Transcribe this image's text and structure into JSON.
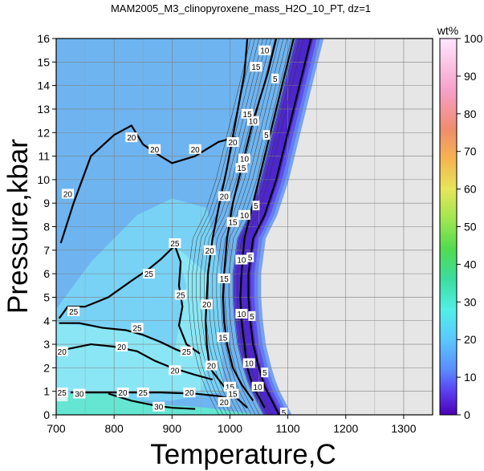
{
  "chart_data": {
    "type": "heatmap",
    "title": "MAM2005_M3_clinopyroxene_mass_H2O_10_PT, dz=1",
    "xlabel": "Temperature,C",
    "ylabel": "Pressure,kbar",
    "xlim": [
      700,
      1350
    ],
    "ylim": [
      0,
      16
    ],
    "xticks": [
      "700",
      "800",
      "900",
      "1000",
      "1100",
      "1200",
      "1300"
    ],
    "yticks": [
      "0",
      "1",
      "2",
      "3",
      "4",
      "5",
      "6",
      "7",
      "8",
      "9",
      "10",
      "11",
      "12",
      "13",
      "14",
      "15",
      "16"
    ],
    "grid": true,
    "colorbar": {
      "label": "wt%",
      "ticks": [
        "0",
        "10",
        "20",
        "30",
        "40",
        "50",
        "60",
        "70",
        "80",
        "90",
        "100"
      ],
      "range": [
        0,
        100
      ]
    },
    "no_data_color": "#e6e6e6",
    "contours": [
      {
        "level": 5,
        "points": [
          [
            1085,
            0
          ],
          [
            1060,
            1.2
          ],
          [
            1050,
            2
          ],
          [
            1040,
            3
          ],
          [
            1035,
            4
          ],
          [
            1032,
            5
          ],
          [
            1032,
            6
          ],
          [
            1040,
            7.5
          ],
          [
            1060,
            8.5
          ],
          [
            1080,
            10
          ],
          [
            1100,
            12
          ],
          [
            1120,
            14
          ],
          [
            1140,
            16
          ]
        ]
      },
      {
        "level": 10,
        "points": [
          [
            1060,
            0.3
          ],
          [
            1040,
            1.2
          ],
          [
            1030,
            2
          ],
          [
            1025,
            3
          ],
          [
            1020,
            4
          ],
          [
            1018,
            5
          ],
          [
            1020,
            6
          ],
          [
            1025,
            7.5
          ],
          [
            1040,
            9
          ],
          [
            1055,
            10.5
          ],
          [
            1075,
            12.5
          ],
          [
            1100,
            15
          ],
          [
            1110,
            16
          ]
        ]
      },
      {
        "level": 15,
        "points": [
          [
            1040,
            0.6
          ],
          [
            1020,
            1.3
          ],
          [
            1005,
            2
          ],
          [
            995,
            3
          ],
          [
            990,
            4
          ],
          [
            988,
            5
          ],
          [
            990,
            6
          ],
          [
            995,
            7.5
          ],
          [
            1005,
            9
          ],
          [
            1020,
            10.5
          ],
          [
            1040,
            12.5
          ],
          [
            1065,
            14.5
          ],
          [
            1080,
            16
          ]
        ]
      },
      {
        "level": 20,
        "points": [
          [
            1030,
            0.3
          ],
          [
            990,
            1.2
          ],
          [
            965,
            2
          ],
          [
            960,
            3
          ],
          [
            958,
            4
          ],
          [
            960,
            5
          ],
          [
            962,
            6
          ],
          [
            970,
            7.5
          ],
          [
            982,
            9
          ],
          [
            995,
            10.5
          ],
          [
            1010,
            12.5
          ],
          [
            1025,
            14.5
          ],
          [
            1030,
            16
          ]
        ]
      },
      {
        "level": 20,
        "points": [
          [
            708,
            7.3
          ],
          [
            730,
            9
          ],
          [
            760,
            11
          ],
          [
            800,
            11.9
          ],
          [
            830,
            12.3
          ],
          [
            850,
            11.5
          ],
          [
            880,
            11
          ],
          [
            900,
            10.7
          ],
          [
            940,
            11
          ],
          [
            980,
            11.6
          ],
          [
            1010,
            11.8
          ]
        ]
      },
      {
        "level": 20,
        "points": [
          [
            700,
            2.5
          ],
          [
            720,
            2.8
          ],
          [
            760,
            3
          ],
          [
            800,
            2.9
          ],
          [
            840,
            2.7
          ],
          [
            870,
            2.3
          ],
          [
            900,
            2.0
          ],
          [
            940,
            1.7
          ],
          [
            970,
            1.5
          ]
        ]
      },
      {
        "level": 25,
        "points": [
          [
            705,
            4.1
          ],
          [
            720,
            4.6
          ],
          [
            750,
            4.6
          ],
          [
            790,
            5.0
          ],
          [
            830,
            5.7
          ],
          [
            860,
            6.2
          ],
          [
            880,
            6.6
          ],
          [
            905,
            7.2
          ],
          [
            915,
            6.5
          ],
          [
            912,
            5.5
          ],
          [
            918,
            4.6
          ],
          [
            912,
            3.8
          ],
          [
            925,
            3.0
          ],
          [
            948,
            2.6
          ]
        ]
      },
      {
        "level": 25,
        "points": [
          [
            705,
            3.9
          ],
          [
            740,
            3.9
          ],
          [
            780,
            3.7
          ],
          [
            820,
            3.6
          ],
          [
            850,
            3.4
          ],
          [
            880,
            3.1
          ],
          [
            905,
            2.8
          ],
          [
            925,
            2.6
          ]
        ]
      },
      {
        "level": 20,
        "points": [
          [
            725,
            0.95
          ],
          [
            800,
            0.95
          ],
          [
            880,
            0.95
          ],
          [
            940,
            0.9
          ],
          [
            980,
            0.8
          ],
          [
            1000,
            0.7
          ]
        ]
      },
      {
        "level": 30,
        "points": [
          [
            790,
            0.9
          ],
          [
            830,
            0.6
          ],
          [
            870,
            0.4
          ],
          [
            900,
            0.3
          ],
          [
            940,
            0.25
          ]
        ]
      }
    ],
    "contour_labels": [
      {
        "text": "5",
        "x": 1078,
        "y": 14.3
      },
      {
        "text": "5",
        "x": 1063,
        "y": 11.9
      },
      {
        "text": "5",
        "x": 1045,
        "y": 8.9
      },
      {
        "text": "5",
        "x": 1035,
        "y": 6.7
      },
      {
        "text": "5",
        "x": 1038,
        "y": 4.2
      },
      {
        "text": "5",
        "x": 1060,
        "y": 1.8
      },
      {
        "text": "5",
        "x": 1093,
        "y": 0.1
      },
      {
        "text": "10",
        "x": 1060,
        "y": 15.5
      },
      {
        "text": "10",
        "x": 1040,
        "y": 12.5
      },
      {
        "text": "10",
        "x": 1025,
        "y": 10.9
      },
      {
        "text": "10",
        "x": 1025,
        "y": 8.5
      },
      {
        "text": "10",
        "x": 1020,
        "y": 6.6
      },
      {
        "text": "10",
        "x": 1020,
        "y": 4.3
      },
      {
        "text": "10",
        "x": 1033,
        "y": 2.2
      },
      {
        "text": "10",
        "x": 1048,
        "y": 1.2
      },
      {
        "text": "15",
        "x": 1045,
        "y": 14.8
      },
      {
        "text": "15",
        "x": 1030,
        "y": 12.8
      },
      {
        "text": "15",
        "x": 1020,
        "y": 10.5
      },
      {
        "text": "15",
        "x": 1005,
        "y": 8.2
      },
      {
        "text": "15",
        "x": 990,
        "y": 5.8
      },
      {
        "text": "15",
        "x": 988,
        "y": 3.3
      },
      {
        "text": "15",
        "x": 1000,
        "y": 1.2
      },
      {
        "text": "15",
        "x": 1005,
        "y": 0.9
      },
      {
        "text": "20",
        "x": 1005,
        "y": 11.6
      },
      {
        "text": "20",
        "x": 990,
        "y": 9.3
      },
      {
        "text": "20",
        "x": 965,
        "y": 7.0
      },
      {
        "text": "20",
        "x": 960,
        "y": 4.7
      },
      {
        "text": "20",
        "x": 968,
        "y": 2.1
      },
      {
        "text": "20",
        "x": 830,
        "y": 11.8
      },
      {
        "text": "20",
        "x": 870,
        "y": 11.3
      },
      {
        "text": "20",
        "x": 940,
        "y": 11.3
      },
      {
        "text": "20",
        "x": 720,
        "y": 9.4
      },
      {
        "text": "20",
        "x": 710,
        "y": 2.7
      },
      {
        "text": "20",
        "x": 813,
        "y": 2.9
      },
      {
        "text": "20",
        "x": 905,
        "y": 1.9
      },
      {
        "text": "20",
        "x": 815,
        "y": 0.95
      },
      {
        "text": "20",
        "x": 930,
        "y": 0.95
      },
      {
        "text": "20",
        "x": 990,
        "y": 0.55
      },
      {
        "text": "25",
        "x": 905,
        "y": 7.3
      },
      {
        "text": "25",
        "x": 915,
        "y": 5.1
      },
      {
        "text": "25",
        "x": 860,
        "y": 6.0
      },
      {
        "text": "25",
        "x": 730,
        "y": 4.4
      },
      {
        "text": "25",
        "x": 840,
        "y": 3.7
      },
      {
        "text": "25",
        "x": 925,
        "y": 2.7
      },
      {
        "text": "25",
        "x": 710,
        "y": 0.95
      },
      {
        "text": "25",
        "x": 850,
        "y": 0.95
      },
      {
        "text": "30",
        "x": 740,
        "y": 0.9
      },
      {
        "text": "30",
        "x": 877,
        "y": 0.35
      }
    ]
  }
}
